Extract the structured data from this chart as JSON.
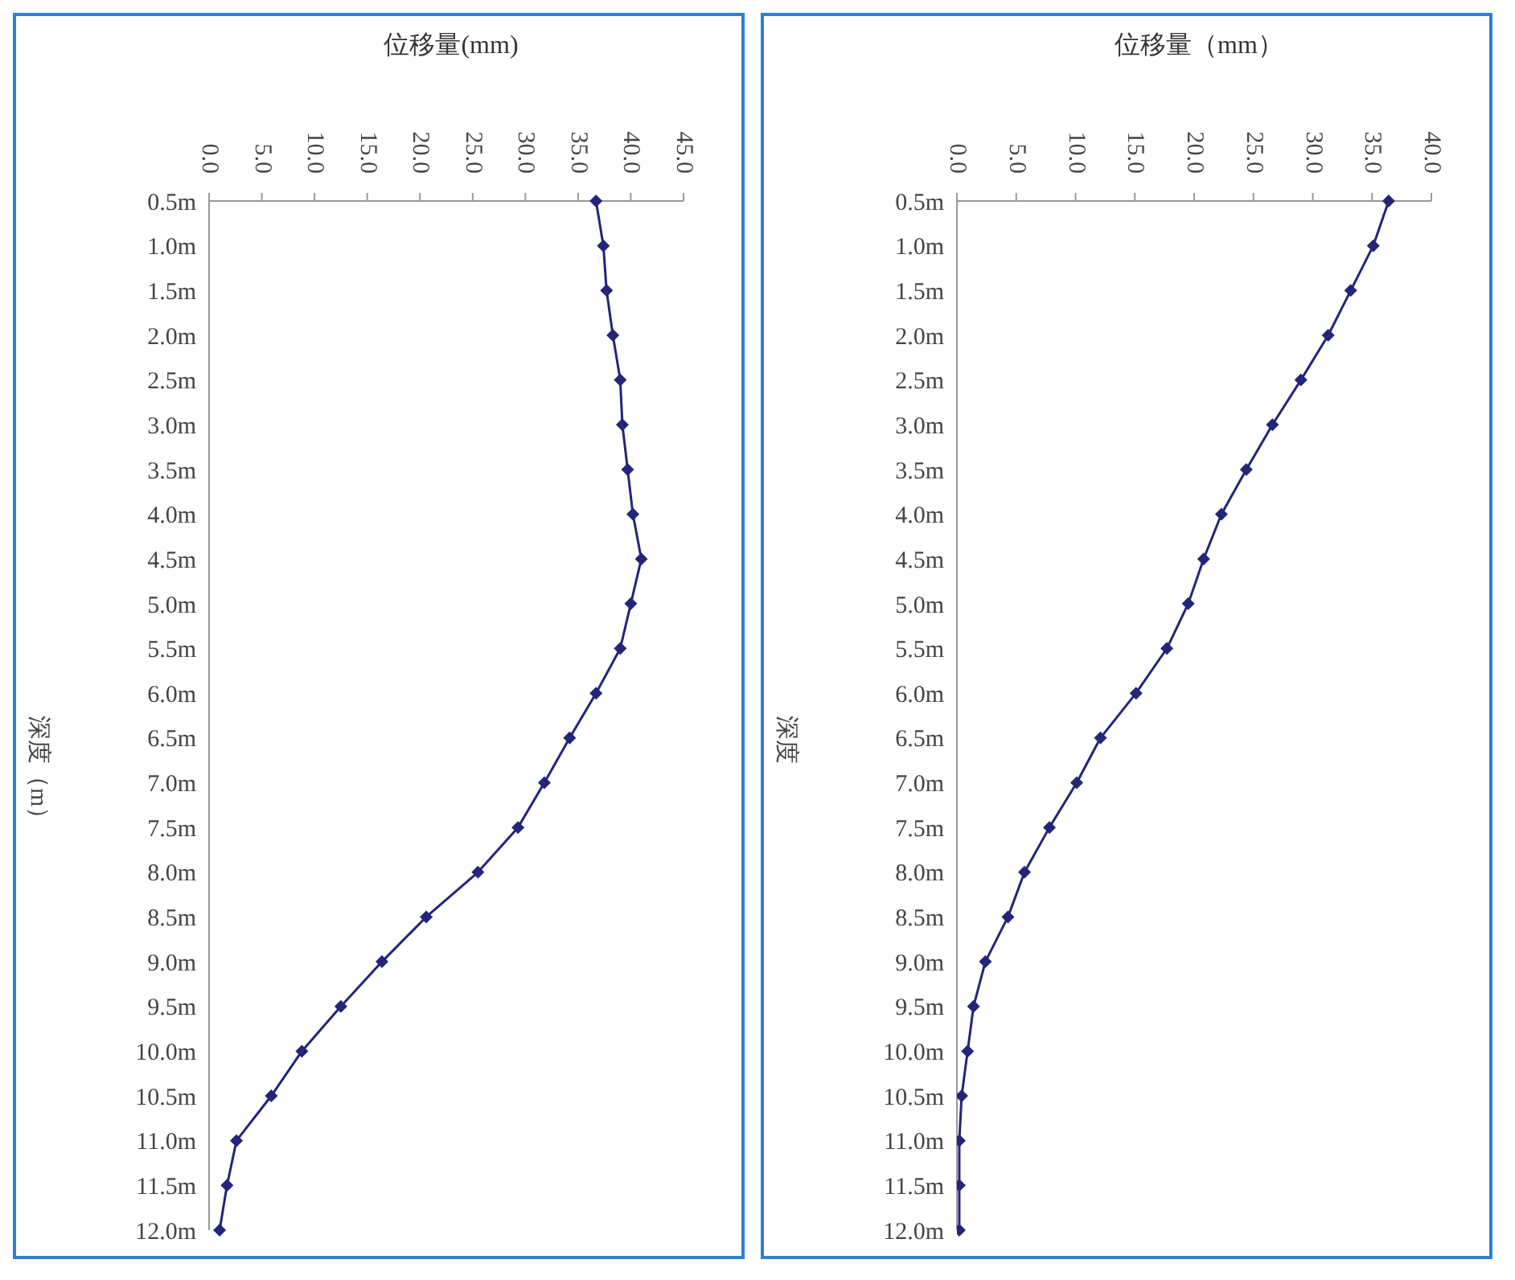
{
  "chart_data": [
    {
      "type": "line",
      "orientation": "horizontal",
      "xlabel": "位移量(mm)",
      "ylabel": "深度（m）",
      "marker": "diamond",
      "categories": [
        "0.5m",
        "1.0m",
        "1.5m",
        "2.0m",
        "2.5m",
        "3.0m",
        "3.5m",
        "4.0m",
        "4.5m",
        "5.0m",
        "5.5m",
        "6.0m",
        "6.5m",
        "7.0m",
        "7.5m",
        "8.0m",
        "8.5m",
        "9.0m",
        "9.5m",
        "10.0m",
        "10.5m",
        "11.0m",
        "11.5m",
        "12.0m"
      ],
      "series": [
        {
          "color": "#24247a",
          "values": [
            36.7,
            37.4,
            37.7,
            38.3,
            39.0,
            39.2,
            39.7,
            40.2,
            41.0,
            40.0,
            39.0,
            36.7,
            34.2,
            31.8,
            29.3,
            25.5,
            20.6,
            16.4,
            12.5,
            8.8,
            5.9,
            2.6,
            1.7,
            1.0
          ]
        }
      ],
      "xlim": [
        0,
        45
      ],
      "xticks": [
        {
          "value": 0,
          "label": "0.0"
        },
        {
          "value": 5,
          "label": "5.0"
        },
        {
          "value": 10,
          "label": "10.0"
        },
        {
          "value": 15,
          "label": "15.0"
        },
        {
          "value": 20,
          "label": "20.0"
        },
        {
          "value": 25,
          "label": "25.0"
        },
        {
          "value": 30,
          "label": "30.0"
        },
        {
          "value": 35,
          "label": "35.0"
        },
        {
          "value": 40,
          "label": "40.0"
        },
        {
          "value": 45,
          "label": "45.0"
        }
      ]
    },
    {
      "type": "line",
      "orientation": "horizontal",
      "xlabel": "位移量（mm）",
      "ylabel": "深度",
      "marker": "diamond",
      "categories": [
        "0.5m",
        "1.0m",
        "1.5m",
        "2.0m",
        "2.5m",
        "3.0m",
        "3.5m",
        "4.0m",
        "4.5m",
        "5.0m",
        "5.5m",
        "6.0m",
        "6.5m",
        "7.0m",
        "7.5m",
        "8.0m",
        "8.5m",
        "9.0m",
        "9.5m",
        "10.0m",
        "10.5m",
        "11.0m",
        "11.5m",
        "12.0m"
      ],
      "series": [
        {
          "color": "#24247a",
          "values": [
            36.4,
            35.1,
            33.2,
            31.3,
            29.0,
            26.6,
            24.4,
            22.3,
            20.8,
            19.5,
            17.7,
            15.1,
            12.1,
            10.1,
            7.8,
            5.7,
            4.3,
            2.4,
            1.4,
            0.9,
            0.4,
            0.2,
            0.2,
            0.2
          ]
        }
      ],
      "xlim": [
        0,
        40
      ],
      "xticks": [
        {
          "value": 0,
          "label": "0.0"
        },
        {
          "value": 5,
          "label": "5.0"
        },
        {
          "value": 10,
          "label": "10.0"
        },
        {
          "value": 15,
          "label": "15.0"
        },
        {
          "value": 20,
          "label": "20.0"
        },
        {
          "value": 25,
          "label": "25.0"
        },
        {
          "value": 30,
          "label": "30.0"
        },
        {
          "value": 35,
          "label": "35.0"
        },
        {
          "value": 40,
          "label": "40.0"
        }
      ]
    }
  ]
}
